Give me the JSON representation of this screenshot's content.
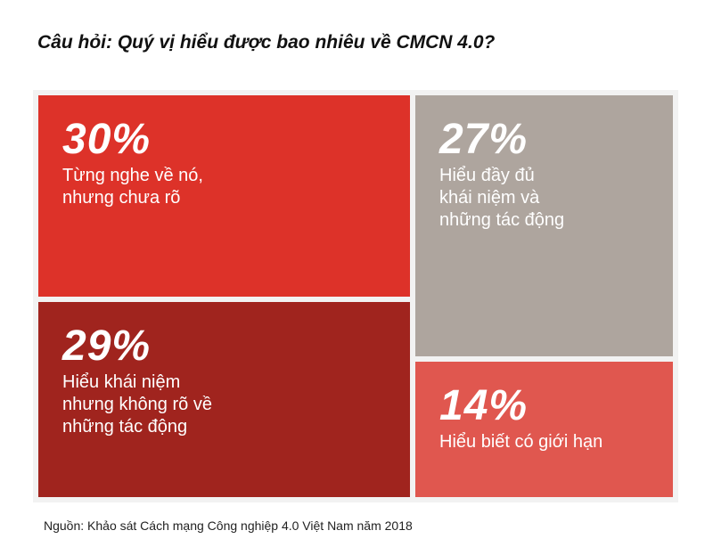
{
  "title": "Câu hỏi: Quý vị hiểu được bao nhiêu về CMCN 4.0?",
  "source": "Nguồn: Khảo sát Cách mạng Công nghiệp 4.0 Việt Nam năm 2018",
  "chart_data": {
    "type": "treemap",
    "title": "Câu hỏi: Quý vị hiểu được bao nhiêu về CMCN 4.0?",
    "unit": "%",
    "items": [
      {
        "key": "heard",
        "value": 30,
        "value_label": "30%",
        "label": "Từng nghe về nó,\nnhưng chưa rõ",
        "color": "#dd3229"
      },
      {
        "key": "concept",
        "value": 29,
        "value_label": "29%",
        "label": "Hiểu khái niệm\nnhưng không rõ về\nnhững tác động",
        "color": "#a0241e"
      },
      {
        "key": "full",
        "value": 27,
        "value_label": "27%",
        "label": "Hiểu đầy đủ\nkhái niệm và\nnhững tác động",
        "color": "#aea59e"
      },
      {
        "key": "limited",
        "value": 14,
        "value_label": "14%",
        "label": "Hiểu biết có giới hạn",
        "color": "#e0574f"
      }
    ]
  }
}
